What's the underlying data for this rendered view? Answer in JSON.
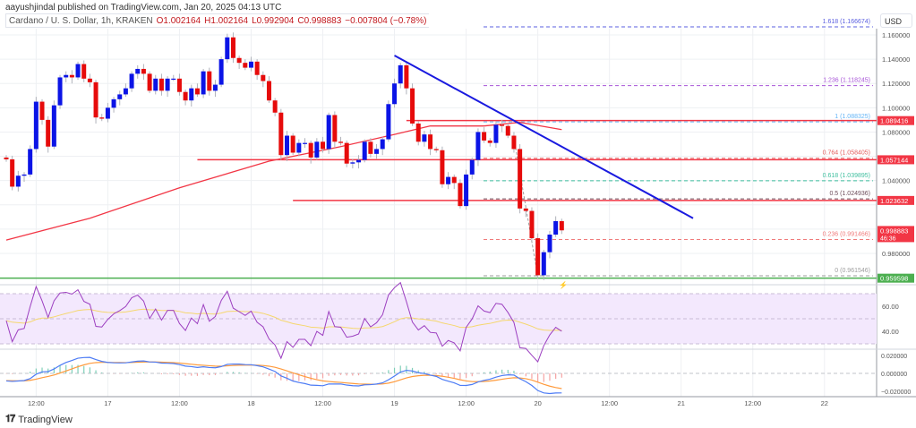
{
  "publisher_line": "aayushjindal published on TradingView.com, Jan 20, 2025 04:13 UTC",
  "legend": {
    "symbol": "Cardano / U. S. Dollar, 1h, KRAKEN",
    "open": "O1.002164",
    "high": "H1.002164",
    "low": "L0.992904",
    "close": "C0.998883",
    "change": "−0.007804 (−0.78%)"
  },
  "currency": "USD",
  "price_axis": {
    "ticks": [
      "1.160000",
      "1.140000",
      "1.120000",
      "1.100000",
      "1.080000",
      "1.040000",
      "0.980000"
    ],
    "tick_values": [
      1.16,
      1.14,
      1.12,
      1.1,
      1.08,
      1.04,
      0.98
    ],
    "price_range": [
      0.955,
      1.17
    ]
  },
  "price_labels": [
    {
      "value": 1.089416,
      "text": "1.089416",
      "color": "#f23645"
    },
    {
      "value": 1.057144,
      "text": "1.057144",
      "color": "#f23645"
    },
    {
      "value": 1.023632,
      "text": "1.023632",
      "color": "#f23645"
    },
    {
      "value": 0.998883,
      "text": "0.998883",
      "sub": "46:36",
      "color": "#f23645"
    },
    {
      "value": 0.959598,
      "text": "0.959598",
      "color": "#4caf50"
    }
  ],
  "horizontal_lines": [
    {
      "value": 1.089416,
      "from_index": 67,
      "color": "#f23645"
    },
    {
      "value": 1.057144,
      "from_index": 32,
      "color": "#f23645"
    },
    {
      "value": 1.023632,
      "from_index": 48,
      "color": "#f23645"
    },
    {
      "value": 0.959598,
      "from_index": -1,
      "color": "#4caf50"
    }
  ],
  "trendline": {
    "start": [
      65,
      1.143
    ],
    "end": [
      115,
      1.009
    ],
    "color": "#1a1adf"
  },
  "fib_levels": [
    {
      "text": "1.618 (1.166674)",
      "value": 1.166674,
      "color": "#5b5fe0"
    },
    {
      "text": "1.236 (1.118245)",
      "value": 1.118245,
      "color": "#a855d8"
    },
    {
      "text": "1 (1.088325)",
      "value": 1.088325,
      "color": "#64b5f6"
    },
    {
      "text": "0.764 (1.058405)",
      "value": 1.058405,
      "color": "#e35d5d"
    },
    {
      "text": "0.618 (1.039895)",
      "value": 1.039895,
      "color": "#3fbf9f"
    },
    {
      "text": "0.5 (1.024936)",
      "value": 1.024936,
      "color": "#6d4c5a"
    },
    {
      "text": "0.236 (0.991466)",
      "value": 0.991466,
      "color": "#f07b7b"
    },
    {
      "text": "0 (0.961546)",
      "value": 0.961546,
      "color": "#9e9e9e"
    }
  ],
  "candles": {
    "first_open": 1.059,
    "closes": [
      1.0575,
      1.035,
      1.044,
      1.045,
      1.066,
      1.105,
      1.09,
      1.068,
      1.102,
      1.125,
      1.127,
      1.125,
      1.136,
      1.124,
      1.121,
      1.092,
      1.091,
      1.1,
      1.107,
      1.111,
      1.116,
      1.128,
      1.132,
      1.128,
      1.114,
      1.124,
      1.114,
      1.124,
      1.124,
      1.113,
      1.106,
      1.116,
      1.111,
      1.13,
      1.114,
      1.119,
      1.14,
      1.158,
      1.141,
      1.137,
      1.133,
      1.138,
      1.127,
      1.122,
      1.106,
      1.096,
      1.061,
      1.077,
      1.063,
      1.071,
      1.071,
      1.059,
      1.072,
      1.066,
      1.094,
      1.072,
      1.071,
      1.054,
      1.055,
      1.057,
      1.072,
      1.062,
      1.066,
      1.074,
      1.103,
      1.12,
      1.135,
      1.116,
      1.087,
      1.072,
      1.078,
      1.066,
      1.065,
      1.037,
      1.043,
      1.038,
      1.019,
      1.045,
      1.057,
      1.08,
      1.073,
      1.071,
      1.086,
      1.085,
      1.077,
      1.066,
      1.017,
      1.015,
      0.9925,
      0.962,
      0.981,
      0.9955,
      1.0066,
      0.999
    ],
    "up_color": "#0b14e6",
    "down_color": "#e60b0b"
  },
  "moving_average": {
    "color": "#f23645",
    "points": [
      [
        0,
        0.991
      ],
      [
        14,
        1.009
      ],
      [
        29,
        1.034
      ],
      [
        44,
        1.056
      ],
      [
        56,
        1.068
      ],
      [
        65,
        1.078
      ],
      [
        71,
        1.085
      ],
      [
        80,
        1.085
      ],
      [
        86,
        1.088
      ],
      [
        93,
        1.082
      ]
    ]
  },
  "rsi_panel": {
    "ticks": [
      "60.00",
      "40.00"
    ],
    "tick_values": [
      60,
      40
    ],
    "band": [
      70,
      30
    ],
    "line_color": "#9c3fc0",
    "ma_color": "#f5d76e"
  },
  "macd_panel": {
    "ticks": [
      "0.020000",
      "0.000000",
      "−0.020000"
    ],
    "tick_values": [
      0.02,
      0,
      -0.02
    ],
    "macd_color": "#4d7cf5",
    "signal_color": "#ff9a3c"
  },
  "time_axis": [
    {
      "label": "12:00",
      "index": 5
    },
    {
      "label": "17",
      "index": 17
    },
    {
      "label": "12:00",
      "index": 29
    },
    {
      "label": "18",
      "index": 41
    },
    {
      "label": "12:00",
      "index": 53
    },
    {
      "label": "19",
      "index": 65
    },
    {
      "label": "12:00",
      "index": 77
    },
    {
      "label": "20",
      "index": 89
    },
    {
      "label": "12:00",
      "index": 101
    },
    {
      "label": "21",
      "index": 113
    },
    {
      "label": "12:00",
      "index": 125
    },
    {
      "label": "22",
      "index": 137
    }
  ],
  "footer": {
    "logo_text": "TradingView"
  }
}
